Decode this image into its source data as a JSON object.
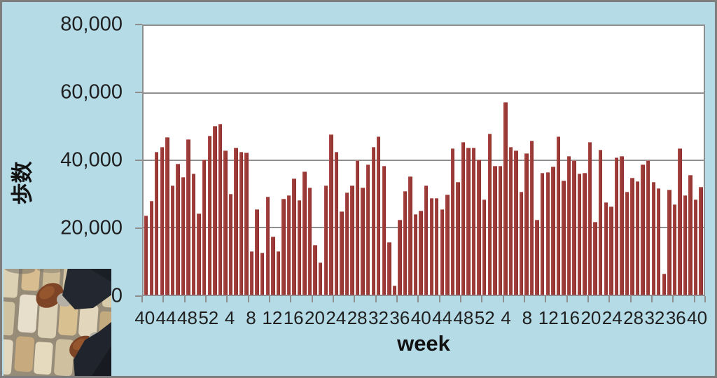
{
  "chart": {
    "y_axis": {
      "title": "歩数",
      "tick_labels": [
        "80,000",
        "60,000",
        "40,000",
        "20,000",
        "0"
      ],
      "min": 0,
      "max": 80000,
      "step": 20000
    },
    "x_axis": {
      "title": "week",
      "tick_labels": [
        "40",
        "44",
        "48",
        "52",
        "4",
        "8",
        "12",
        "16",
        "20",
        "24",
        "28",
        "32",
        "36",
        "40",
        "44",
        "48",
        "52",
        "4",
        "8",
        "12",
        "16",
        "20",
        "24",
        "28",
        "32",
        "36",
        "40"
      ],
      "label_every": 4
    }
  },
  "chart_data": {
    "type": "bar",
    "title": "",
    "xlabel": "week",
    "ylabel": "歩数",
    "ylim": [
      0,
      80000
    ],
    "grid": true,
    "legend": "none",
    "bar_color": "#9c3a37",
    "plot_bg": "#ffffff",
    "x_weeks": [
      40,
      41,
      42,
      43,
      44,
      45,
      46,
      47,
      48,
      49,
      50,
      51,
      52,
      1,
      2,
      3,
      4,
      5,
      6,
      7,
      8,
      9,
      10,
      11,
      12,
      13,
      14,
      15,
      16,
      17,
      18,
      19,
      20,
      21,
      22,
      23,
      24,
      25,
      26,
      27,
      28,
      29,
      30,
      31,
      32,
      33,
      34,
      35,
      36,
      37,
      38,
      39,
      40,
      41,
      42,
      43,
      44,
      45,
      46,
      47,
      48,
      49,
      50,
      51,
      52,
      1,
      2,
      3,
      4,
      5,
      6,
      7,
      8,
      9,
      10,
      11,
      12,
      13,
      14,
      15,
      16,
      17,
      18,
      19,
      20,
      21,
      22,
      23,
      24,
      25,
      26,
      27,
      28,
      29,
      30,
      31,
      32,
      33,
      34,
      35,
      36,
      37,
      38,
      39,
      40,
      41
    ],
    "series": [
      {
        "name": "歩数",
        "values": [
          23500,
          28000,
          42400,
          44000,
          46900,
          32400,
          39000,
          34900,
          46200,
          36000,
          24200,
          40300,
          47300,
          50200,
          50900,
          43000,
          30100,
          43800,
          42500,
          42200,
          13000,
          25500,
          12600,
          29100,
          17300,
          13000,
          28500,
          29500,
          34600,
          28100,
          36700,
          31900,
          14700,
          9500,
          32600,
          47700,
          42400,
          24700,
          30500,
          32400,
          40100,
          31900,
          38800,
          43900,
          47000,
          38400,
          15700,
          2700,
          22300,
          30900,
          35300,
          24000,
          25000,
          32600,
          28800,
          28700,
          25400,
          29800,
          43600,
          33500,
          45500,
          43800,
          43700,
          40300,
          28300,
          47900,
          38300,
          38400,
          57200,
          43900,
          42900,
          30700,
          42000,
          45800,
          22300,
          36300,
          36500,
          38100,
          47000,
          34000,
          41300,
          40100,
          36000,
          36300,
          45400,
          21600,
          43200,
          27600,
          26200,
          40800,
          41300,
          30700,
          34800,
          33700,
          38800,
          40000,
          33600,
          31700,
          6300,
          31200,
          26900,
          43600,
          29500,
          35700,
          28300,
          32000
        ]
      }
    ]
  },
  "photo": {
    "description": "feet in dark trousers with brown leather shoes standing on beige cobblestone pavement"
  },
  "colors": {
    "background": "#b5dbe7",
    "frame": "#7d7d7d",
    "bar": "#9c3a37",
    "grid": "#8f8f8f",
    "text": "#1f1f1f"
  }
}
